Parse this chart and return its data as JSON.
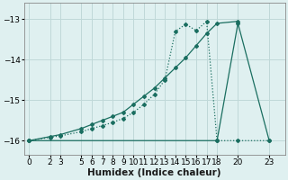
{
  "xlabel": "Humidex (Indice chaleur)",
  "bg_color": "#dff0f0",
  "line_color": "#1a6e60",
  "grid_color": "#c0d8d8",
  "ylim": [
    -16.35,
    -12.6
  ],
  "xlim": [
    -0.5,
    24.5
  ],
  "yticks": [
    -16,
    -15,
    -14,
    -13
  ],
  "xticks": [
    0,
    2,
    3,
    5,
    6,
    7,
    8,
    9,
    10,
    11,
    12,
    13,
    14,
    15,
    16,
    17,
    18,
    20,
    23
  ],
  "line1_x": [
    0,
    2,
    3,
    5,
    6,
    7,
    8,
    9,
    10,
    11,
    12,
    13,
    14,
    15,
    16,
    17,
    18,
    20
  ],
  "line1_y": [
    -16.0,
    -15.9,
    -15.85,
    -15.7,
    -15.6,
    -15.5,
    -15.4,
    -15.3,
    -15.1,
    -14.9,
    -14.7,
    -14.45,
    -14.2,
    -13.95,
    -13.65,
    -13.35,
    -13.1,
    -13.05
  ],
  "line2_x": [
    0,
    2,
    3,
    5,
    6,
    7,
    8,
    9,
    10,
    11,
    12,
    13,
    14,
    15,
    16,
    17,
    18,
    20,
    23
  ],
  "line2_y": [
    -16.0,
    -15.92,
    -15.88,
    -15.78,
    -15.7,
    -15.63,
    -15.55,
    -15.45,
    -15.3,
    -15.1,
    -14.85,
    -14.5,
    -13.3,
    -13.12,
    -13.28,
    -13.05,
    -16.0,
    -16.0,
    -16.0
  ],
  "line3_x": [
    0,
    18,
    20,
    23
  ],
  "line3_y": [
    -16.0,
    -16.0,
    -13.1,
    -16.0
  ],
  "title_fontsize": 9,
  "axis_fontsize": 7.5,
  "tick_fontsize": 6.5
}
